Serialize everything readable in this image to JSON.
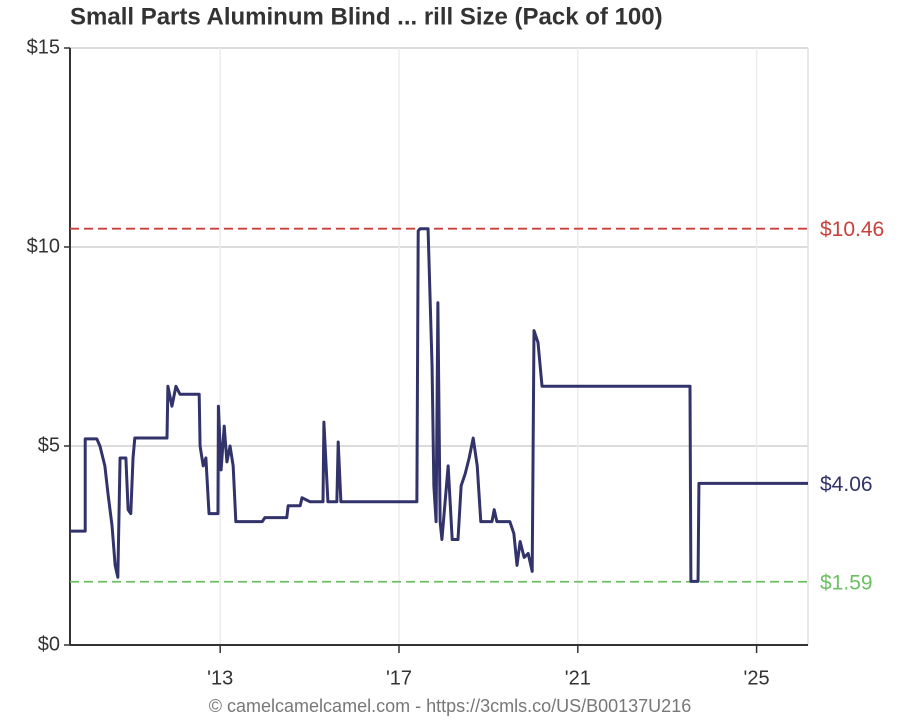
{
  "chart_data": {
    "type": "line",
    "title": "Small Parts Aluminum Blind ... rill Size (Pack of 100)",
    "footer": "© camelcamelcamel.com - https://3cmls.co/US/B00137U216",
    "xlim": [
      2009.64,
      2026.15
    ],
    "xticks": [
      {
        "value": 2013,
        "label": "'13"
      },
      {
        "value": 2017,
        "label": "'17"
      },
      {
        "value": 2021,
        "label": "'21"
      },
      {
        "value": 2025,
        "label": "'25"
      }
    ],
    "ylim": [
      0,
      15
    ],
    "yticks": [
      {
        "value": 0,
        "label": "$0"
      },
      {
        "value": 5,
        "label": "$5"
      },
      {
        "value": 10,
        "label": "$10"
      },
      {
        "value": 15,
        "label": "$15"
      }
    ],
    "grid": true,
    "series": [
      {
        "color": "#33336b",
        "x": [
          2009.64,
          2009.98,
          2009.98,
          2010.24,
          2010.31,
          2010.42,
          2010.49,
          2010.58,
          2010.65,
          2010.71,
          2010.76,
          2010.89,
          2010.94,
          2011.0,
          2011.05,
          2011.09,
          2011.81,
          2011.83,
          2011.92,
          2012.01,
          2012.1,
          2012.53,
          2012.55,
          2012.62,
          2012.68,
          2012.75,
          2012.95,
          2012.96,
          2013.02,
          2013.09,
          2013.15,
          2013.22,
          2013.29,
          2013.35,
          2013.94,
          2014.0,
          2014.49,
          2014.52,
          2014.79,
          2014.83,
          2015.01,
          2015.3,
          2015.32,
          2015.41,
          2015.61,
          2015.64,
          2015.7,
          2017.4,
          2017.43,
          2017.47,
          2017.65,
          2017.74,
          2017.78,
          2017.83,
          2017.87,
          2017.92,
          2017.96,
          2018.1,
          2018.19,
          2018.32,
          2018.39,
          2018.48,
          2018.57,
          2018.66,
          2018.75,
          2018.83,
          2019.08,
          2019.13,
          2019.19,
          2019.48,
          2019.57,
          2019.64,
          2019.71,
          2019.8,
          2019.89,
          2019.98,
          2020.02,
          2020.11,
          2020.2,
          2023.51,
          2023.53,
          2023.69,
          2023.71,
          2026.15
        ],
        "values": [
          2.86,
          2.86,
          5.18,
          5.18,
          5.0,
          4.5,
          3.8,
          3.0,
          2.0,
          1.7,
          4.7,
          4.7,
          3.4,
          3.3,
          4.7,
          5.2,
          5.2,
          6.5,
          6.0,
          6.5,
          6.3,
          6.3,
          5.0,
          4.5,
          4.7,
          3.3,
          3.3,
          6.0,
          4.4,
          5.5,
          4.6,
          5.0,
          4.5,
          3.1,
          3.1,
          3.2,
          3.2,
          3.5,
          3.5,
          3.7,
          3.6,
          3.6,
          5.6,
          3.6,
          3.6,
          5.1,
          3.6,
          3.6,
          10.4,
          10.46,
          10.46,
          7.0,
          4.0,
          3.1,
          8.6,
          3.1,
          2.65,
          4.5,
          2.65,
          2.65,
          4.0,
          4.3,
          4.7,
          5.2,
          4.5,
          3.1,
          3.1,
          3.4,
          3.1,
          3.1,
          2.8,
          2.0,
          2.6,
          2.2,
          2.3,
          1.85,
          7.9,
          7.6,
          6.5,
          6.5,
          1.6,
          1.6,
          4.06,
          4.06
        ]
      }
    ],
    "annotations": [
      {
        "value": 10.46,
        "label": "$10.46",
        "color": "#c8413b",
        "dashed": true
      },
      {
        "value": 4.06,
        "label": "$4.06",
        "color": "#33336b",
        "dashed": false
      },
      {
        "value": 1.59,
        "label": "$1.59",
        "color": "#6cbf62",
        "dashed": true
      }
    ]
  }
}
